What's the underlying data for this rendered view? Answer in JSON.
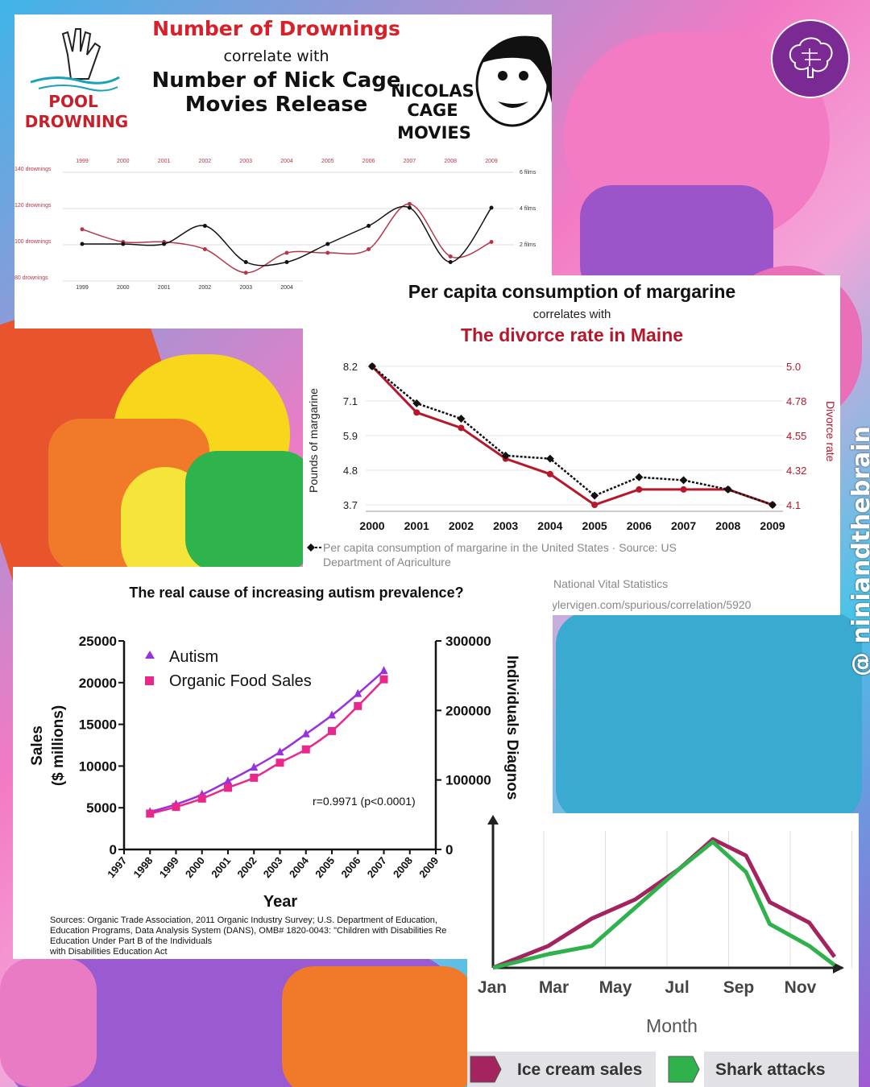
{
  "handle": "@ niniandthebrain",
  "chart_data": [
    {
      "type": "line",
      "title": "Number of Drownings",
      "subtitle": "correlate with",
      "title2": "Number of Nick Cage Movies Release",
      "badge_left": [
        "POOL",
        "DROWNING"
      ],
      "badge_right": [
        "NICOLAS",
        "CAGE",
        "MOVIES"
      ],
      "x": [
        1999,
        2000,
        2001,
        2002,
        2003,
        2004,
        2005,
        2006,
        2007,
        2008,
        2009
      ],
      "x_top_labels": [
        "1999",
        "2000",
        "2001",
        "2002",
        "2003",
        "2004",
        "2005",
        "2006",
        "2007",
        "2008",
        "2009"
      ],
      "x_bottom_labels": [
        "1999",
        "2000",
        "2001",
        "2002",
        "2003",
        "2004"
      ],
      "y_left_ticks": [
        "140 drownings",
        "120 drownings",
        "100 drownings",
        "80 drownings"
      ],
      "y_left_range": [
        80,
        140
      ],
      "y_right_ticks": [
        "6 films",
        "4 films",
        "2 films"
      ],
      "y_right_range": [
        0,
        6
      ],
      "series": [
        {
          "color": "#b5364a",
          "values": [
            109,
            102,
            102,
            98,
            85,
            96,
            96,
            98,
            123,
            94,
            102
          ]
        },
        {
          "color": "#111111",
          "values": [
            2,
            2,
            2,
            3,
            1,
            1,
            2,
            3,
            4,
            1,
            4
          ]
        }
      ]
    },
    {
      "type": "line",
      "title": "Per capita consumption of margarine",
      "subtitle": "correlates with",
      "title2": "The divorce rate in Maine",
      "x": [
        2000,
        2001,
        2002,
        2003,
        2004,
        2005,
        2006,
        2007,
        2008,
        2009
      ],
      "x_labels": [
        "2000",
        "2001",
        "2002",
        "2003",
        "2004",
        "2005",
        "2006",
        "2007",
        "2008",
        "2009"
      ],
      "ylabel_left": "Pounds of margarine",
      "ylabel_right": "Divorce rate",
      "y_left_ticks": [
        "8.2",
        "7.1",
        "5.9",
        "4.8",
        "3.7"
      ],
      "y_left_range": [
        3.7,
        8.2
      ],
      "y_right_ticks": [
        "5.0",
        "4.78",
        "4.55",
        "4.32",
        "4.1"
      ],
      "y_right_range": [
        4.1,
        5.0
      ],
      "series": [
        {
          "name": "Per capita consumption of margarine in the United States",
          "color": "#111111",
          "values": [
            8.2,
            7.0,
            6.5,
            5.3,
            5.2,
            4.0,
            4.6,
            4.5,
            4.2,
            3.7
          ]
        },
        {
          "color": "#b5182b",
          "values": [
            5.0,
            4.7,
            4.6,
            4.4,
            4.3,
            4.1,
            4.2,
            4.2,
            4.2,
            4.1
          ]
        }
      ],
      "source_lines": [
        "Per capita consumption of margarine in the United States · Source: US",
        "Department of Agriculture",
        "National Vital Statistics",
        "ylervigen.com/spurious/correlation/5920"
      ]
    },
    {
      "type": "line",
      "title": "The real cause of increasing autism prevalence?",
      "xlabel": "Year",
      "ylabel_left": [
        "Sales",
        "($ millions)"
      ],
      "ylabel_right": "Individuals Diagnos",
      "x_labels": [
        "1997",
        "1998",
        "1999",
        "2000",
        "2001",
        "2002",
        "2003",
        "2004",
        "2005",
        "2006",
        "2007",
        "2008",
        "2009"
      ],
      "y_left_ticks": [
        "25000",
        "20000",
        "15000",
        "10000",
        "5000",
        "0"
      ],
      "y_left_range": [
        0,
        25000
      ],
      "y_right_ticks": [
        "300000",
        "200000",
        "100000",
        "0"
      ],
      "y_right_range": [
        0,
        300000
      ],
      "annotation": "r=0.9971 (p<0.0001)",
      "series": [
        {
          "name": "Autism",
          "color": "#9b30e0",
          "x": [
            1998,
            1999,
            2000,
            2001,
            2002,
            2003,
            2004,
            2005,
            2006,
            2007
          ],
          "values": [
            54000,
            65000,
            79000,
            98000,
            118000,
            140000,
            166000,
            193000,
            224000,
            257000
          ]
        },
        {
          "name": "Organic Food Sales",
          "color": "#e8288a",
          "x": [
            1998,
            1999,
            2000,
            2001,
            2002,
            2003,
            2004,
            2005,
            2006,
            2007
          ],
          "values": [
            4300,
            5100,
            6100,
            7400,
            8600,
            10400,
            12000,
            14200,
            17200,
            20400
          ]
        }
      ],
      "sources": [
        "Sources: Organic Trade Association,  2011 Organic Industry Survey; U.S. Department of Education,",
        "Education Programs, Data Analysis System (DANS), OMB# 1820-0043: \"Children with Disabilities Re",
        "Education Under Part B of the Individuals",
        "with Disabilities Education Act"
      ]
    },
    {
      "type": "line",
      "xlabel": "Month",
      "x_labels": [
        "Jan",
        "Mar",
        "May",
        "Jul",
        "Sep",
        "Nov"
      ],
      "series": [
        {
          "name": "Ice cream sales",
          "color": "#a3245f",
          "values": [
            0,
            0.16,
            0.36,
            0.5,
            0.72,
            0.94,
            0.82,
            0.48,
            0.33,
            0.08
          ]
        },
        {
          "name": "Shark attacks",
          "color": "#2fb14c",
          "values": [
            0,
            0.1,
            0.16,
            0.44,
            0.72,
            0.92,
            0.7,
            0.32,
            0.16,
            0.02
          ]
        }
      ]
    }
  ]
}
